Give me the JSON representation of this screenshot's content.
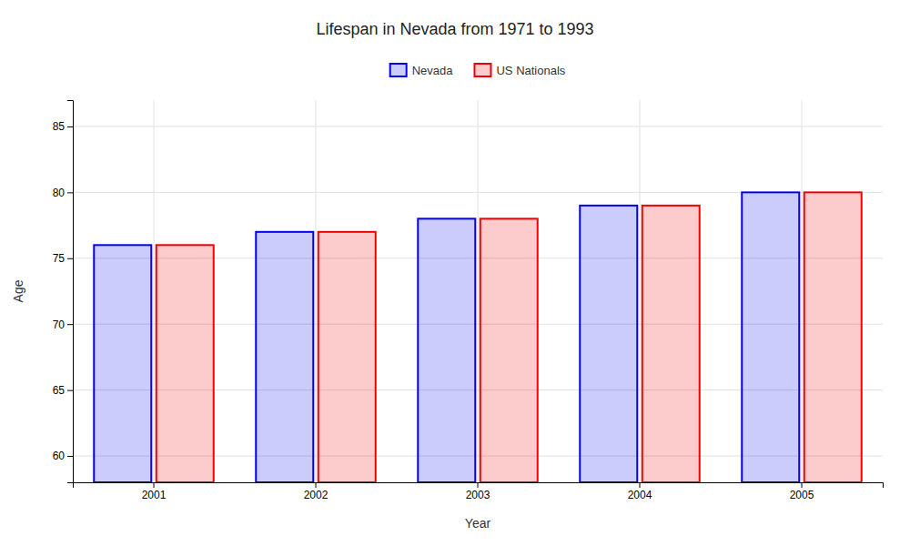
{
  "chart_data": {
    "type": "bar",
    "title": "Lifespan in Nevada from 1971 to 1993",
    "xlabel": "Year",
    "ylabel": "Age",
    "categories": [
      "2001",
      "2002",
      "2003",
      "2004",
      "2005"
    ],
    "series": [
      {
        "name": "Nevada",
        "color": "#0000ee",
        "values": [
          76,
          77,
          78,
          79,
          80
        ]
      },
      {
        "name": "US Nationals",
        "color": "#ee0000",
        "values": [
          76,
          77,
          78,
          79,
          80
        ]
      }
    ],
    "ylim": [
      58,
      87
    ],
    "yticks": [
      60,
      65,
      70,
      75,
      80,
      85
    ],
    "grid": true,
    "legend": "top"
  }
}
